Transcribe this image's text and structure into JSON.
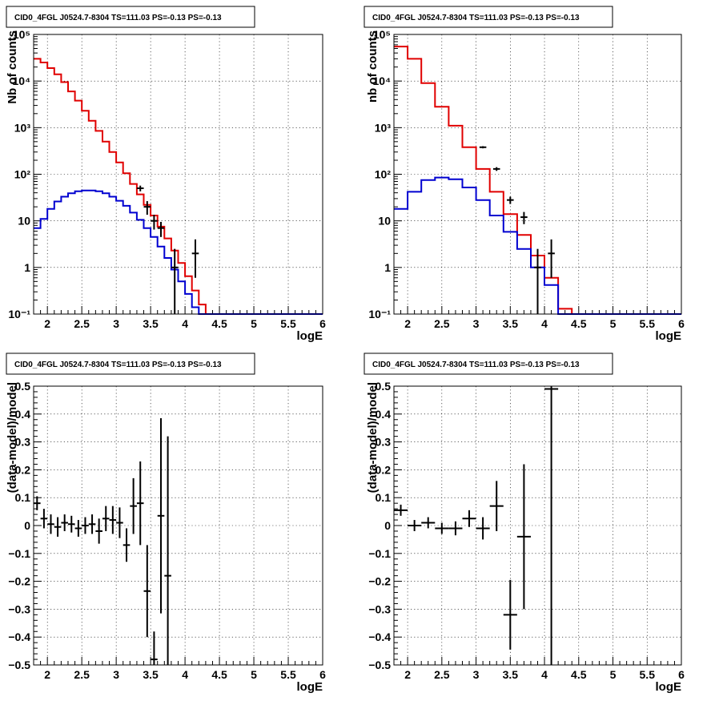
{
  "chart_data": [
    {
      "type": "line",
      "title": "CID0_4FGL J0524.7-8304 TS=111.03 PS=-0.13 PS=-0.13",
      "xlabel": "logE",
      "ylabel": "Nb of counts",
      "scale": "log",
      "xlim": [
        1.8,
        6.0
      ],
      "ylim": [
        0.1,
        100000
      ],
      "grid": true,
      "x_ticks": [
        "2",
        "2.5",
        "3",
        "3.5",
        "4",
        "4.5",
        "5",
        "5.5",
        "6"
      ],
      "y_ticks": [
        "10⁻¹",
        "1",
        "10",
        "10²",
        "10³",
        "10⁴",
        "10⁵"
      ],
      "bin_edges": [
        1.8,
        1.9,
        2.0,
        2.1,
        2.2,
        2.3,
        2.4,
        2.5,
        2.6,
        2.7,
        2.8,
        2.9,
        3.0,
        3.1,
        3.2,
        3.3,
        3.4,
        3.5,
        3.6,
        3.7,
        3.8,
        3.9,
        4.0,
        4.1,
        4.2,
        4.3,
        4.4,
        4.5,
        4.6,
        4.7,
        4.8,
        4.9,
        5.0,
        5.1,
        5.2,
        5.3,
        5.4,
        5.5,
        5.6,
        5.7,
        5.8,
        5.9,
        6.0
      ],
      "series": [
        {
          "color": "#e00000",
          "values": [
            30000,
            25000,
            19000,
            14000,
            9500,
            6000,
            3800,
            2300,
            1400,
            850,
            500,
            300,
            180,
            105,
            62,
            37,
            22,
            13,
            7.5,
            4.2,
            2.3,
            1.25,
            0.65,
            0.32,
            0.16,
            0.1,
            0.1,
            0.1,
            0.1,
            0.1,
            0.1,
            0.1,
            0.1,
            0.1,
            0.1,
            0.1,
            0.1,
            0.1,
            0.1,
            0.1,
            0.1,
            0.1
          ]
        },
        {
          "color": "#0000d0",
          "values": [
            7,
            11,
            18,
            26,
            33,
            39,
            43,
            45,
            45,
            43,
            39,
            33,
            27,
            21,
            15,
            10.5,
            7,
            4.5,
            2.8,
            1.6,
            0.9,
            0.5,
            0.27,
            0.14,
            0.1,
            0.1,
            0.1,
            0.1,
            0.1,
            0.1,
            0.1,
            0.1,
            0.1,
            0.1,
            0.1,
            0.1,
            0.1,
            0.1,
            0.1,
            0.1,
            0.1,
            0.1
          ]
        }
      ],
      "points": {
        "color": "#000000",
        "x": [
          3.35,
          3.45,
          3.55,
          3.65,
          3.85,
          4.15
        ],
        "y": [
          50,
          20,
          10,
          7,
          1,
          2
        ],
        "y_err_low": [
          43,
          13.5,
          6.5,
          4.5,
          0.1,
          0.6
        ],
        "y_err_high": [
          57,
          26.5,
          13.5,
          9.5,
          2.5,
          4
        ]
      }
    },
    {
      "type": "line",
      "title": "CID0_4FGL J0524.7-8304 TS=111.03 PS=-0.13 PS=-0.13",
      "xlabel": "logE",
      "ylabel": "nb of counts",
      "scale": "log",
      "xlim": [
        1.8,
        6.0
      ],
      "ylim": [
        0.1,
        100000
      ],
      "grid": true,
      "x_ticks": [
        "2",
        "2.5",
        "3",
        "3.5",
        "4",
        "4.5",
        "5",
        "5.5",
        "6"
      ],
      "y_ticks": [
        "10⁻¹",
        "1",
        "10",
        "10²",
        "10³",
        "10⁴",
        "10⁵"
      ],
      "bin_edges": [
        1.8,
        2.0,
        2.2,
        2.4,
        2.6,
        2.8,
        3.0,
        3.2,
        3.4,
        3.6,
        3.8,
        4.0,
        4.2,
        4.4,
        4.6,
        4.8,
        5.0,
        5.2,
        5.4,
        5.6,
        5.8,
        6.0
      ],
      "series": [
        {
          "color": "#e00000",
          "values": [
            55000,
            30000,
            9000,
            2800,
            1100,
            380,
            130,
            42,
            14,
            5,
            1.8,
            0.6,
            0.13,
            0.1,
            0.1,
            0.1,
            0.1,
            0.1,
            0.1,
            0.1,
            0.1
          ]
        },
        {
          "color": "#0000d0",
          "values": [
            18,
            42,
            75,
            85,
            78,
            52,
            28,
            13,
            5.8,
            2.5,
            1,
            0.42,
            0.1,
            0.1,
            0.1,
            0.1,
            0.1,
            0.1,
            0.1,
            0.1,
            0.1
          ]
        }
      ],
      "points": {
        "color": "#000000",
        "x": [
          3.1,
          3.3,
          3.5,
          3.7,
          3.9,
          4.1
        ],
        "y": [
          380,
          130,
          28,
          12,
          1,
          2
        ],
        "y_err_low": [
          360,
          118,
          23,
          8.5,
          0.1,
          0.6
        ],
        "y_err_high": [
          400,
          142,
          33,
          15.5,
          2.5,
          4
        ]
      }
    },
    {
      "type": "scatter",
      "title": "CID0_4FGL J0524.7-8304 TS=111.03 PS=-0.13 PS=-0.13",
      "xlabel": "logE",
      "ylabel": "(data-model)/model",
      "xlim": [
        1.8,
        6.0
      ],
      "ylim": [
        -0.5,
        0.5
      ],
      "grid": true,
      "x_ticks": [
        "2",
        "2.5",
        "3",
        "3.5",
        "4",
        "4.5",
        "5",
        "5.5",
        "6"
      ],
      "y_ticks": [
        "−0.5",
        "−0.4",
        "−0.3",
        "−0.2",
        "−0.1",
        "0",
        "0.1",
        "0.2",
        "0.3",
        "0.4",
        "0.5"
      ],
      "points": {
        "color": "#000000",
        "x": [
          1.85,
          1.95,
          2.05,
          2.15,
          2.25,
          2.35,
          2.45,
          2.55,
          2.65,
          2.75,
          2.85,
          2.95,
          3.05,
          3.15,
          3.25,
          3.35,
          3.45,
          3.55,
          3.65,
          3.75
        ],
        "y": [
          0.08,
          0.025,
          0.005,
          -0.005,
          0.01,
          0.005,
          -0.01,
          0.0,
          0.005,
          -0.02,
          0.025,
          0.02,
          0.01,
          -0.07,
          0.07,
          0.08,
          -0.235,
          -0.48,
          0.035,
          -0.18
        ],
        "y_err": [
          0.025,
          0.035,
          0.035,
          0.035,
          0.03,
          0.03,
          0.03,
          0.03,
          0.035,
          0.045,
          0.045,
          0.05,
          0.055,
          0.06,
          0.1,
          0.15,
          0.165,
          0.1,
          0.35,
          0.5
        ]
      }
    },
    {
      "type": "scatter",
      "title": "CID0_4FGL J0524.7-8304 TS=111.03 PS=-0.13 PS=-0.13",
      "xlabel": "logE",
      "ylabel": "(data-model)/model",
      "xlim": [
        1.8,
        6.0
      ],
      "ylim": [
        -0.5,
        0.5
      ],
      "grid": true,
      "x_ticks": [
        "2",
        "2.5",
        "3",
        "3.5",
        "4",
        "4.5",
        "5",
        "5.5",
        "6"
      ],
      "y_ticks": [
        "−0.5",
        "−0.4",
        "−0.3",
        "−0.2",
        "−0.1",
        "0",
        "0.1",
        "0.2",
        "0.3",
        "0.4",
        "0.5"
      ],
      "points": {
        "color": "#000000",
        "x": [
          1.9,
          2.1,
          2.3,
          2.5,
          2.7,
          2.9,
          3.1,
          3.3,
          3.5,
          3.7,
          4.1
        ],
        "y": [
          0.055,
          0.0,
          0.01,
          -0.01,
          -0.01,
          0.025,
          -0.01,
          0.07,
          -0.32,
          -0.04,
          0.49
        ],
        "y_err": [
          0.02,
          0.02,
          0.02,
          0.02,
          0.025,
          0.03,
          0.04,
          0.09,
          0.125,
          0.26,
          0.99
        ]
      }
    }
  ]
}
